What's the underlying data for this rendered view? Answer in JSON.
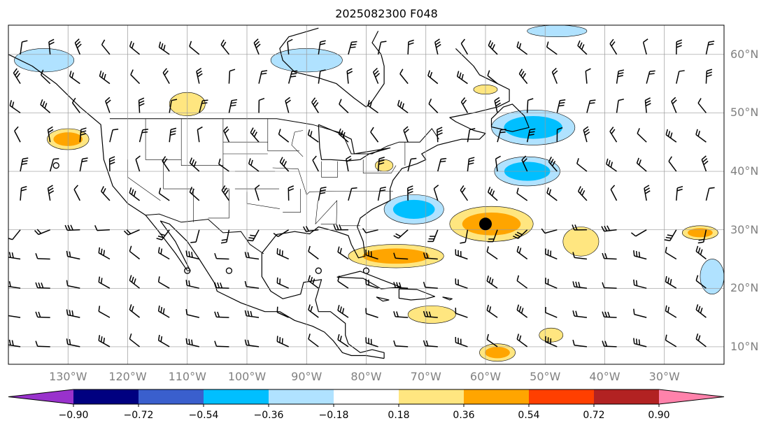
{
  "title": "2025082300 F048",
  "lat_labels": [
    {
      "text": "60°N",
      "lat": 60
    },
    {
      "text": "50°N",
      "lat": 50
    },
    {
      "text": "40°N",
      "lat": 40
    },
    {
      "text": "30°N",
      "lat": 30
    },
    {
      "text": "20°N",
      "lat": 20
    },
    {
      "text": "10°N",
      "lat": 10
    }
  ],
  "lon_labels": [
    {
      "text": "130°W",
      "lon": -130
    },
    {
      "text": "120°W",
      "lon": -120
    },
    {
      "text": "110°W",
      "lon": -110
    },
    {
      "text": "100°W",
      "lon": -100
    },
    {
      "text": "90°W",
      "lon": -90
    },
    {
      "text": "80°W",
      "lon": -80
    },
    {
      "text": "70°W",
      "lon": -70
    },
    {
      "text": "60°W",
      "lon": -60
    },
    {
      "text": "50°W",
      "lon": -50
    },
    {
      "text": "40°W",
      "lon": -40
    },
    {
      "text": "30°W",
      "lon": -30
    }
  ],
  "colorbar": {
    "ticks": [
      "−0.90",
      "−0.72",
      "−0.54",
      "−0.36",
      "−0.18",
      "0.18",
      "0.36",
      "0.54",
      "0.72",
      "0.90"
    ],
    "colors": [
      "#9932cc",
      "#000080",
      "#3a5fcd",
      "#00bfff",
      "#b0e2ff",
      "#ffffff",
      "#ffe680",
      "#ffa500",
      "#ff3f00",
      "#b22222",
      "#ff82ab"
    ]
  },
  "map": {
    "lon_range": [
      -140,
      -20
    ],
    "lat_range": [
      7,
      65
    ],
    "marker": {
      "lon": -60,
      "lat": 31
    }
  },
  "positive_areas": [
    {
      "cx": -59,
      "cy": 31,
      "rx": 7,
      "ry": 3,
      "level": 2
    },
    {
      "cx": -75,
      "cy": 25.5,
      "rx": 8,
      "ry": 2,
      "level": 2
    },
    {
      "cx": -130,
      "cy": 45.5,
      "rx": 3.5,
      "ry": 1.8,
      "level": 2
    },
    {
      "cx": -58,
      "cy": 9,
      "rx": 3,
      "ry": 1.5,
      "level": 2
    },
    {
      "cx": -69,
      "cy": 15.5,
      "rx": 4,
      "ry": 1.5,
      "level": 1
    },
    {
      "cx": -44,
      "cy": 28,
      "rx": 3,
      "ry": 2.5,
      "level": 1
    },
    {
      "cx": -110,
      "cy": 51.5,
      "rx": 3,
      "ry": 2,
      "level": 1
    },
    {
      "cx": -24,
      "cy": 29.5,
      "rx": 3,
      "ry": 1.2,
      "level": 2
    },
    {
      "cx": -49,
      "cy": 12,
      "rx": 2,
      "ry": 1.2,
      "level": 1
    },
    {
      "cx": -60,
      "cy": 54,
      "rx": 2,
      "ry": 0.8,
      "level": 1
    },
    {
      "cx": -77,
      "cy": 41,
      "rx": 1.5,
      "ry": 1,
      "level": 1
    }
  ],
  "negative_areas": [
    {
      "cx": -52,
      "cy": 47.5,
      "rx": 7,
      "ry": 3,
      "level": 2
    },
    {
      "cx": -72,
      "cy": 33.5,
      "rx": 5,
      "ry": 2.5,
      "level": 2
    },
    {
      "cx": -53,
      "cy": 40,
      "rx": 5.5,
      "ry": 2.5,
      "level": 2
    },
    {
      "cx": -90,
      "cy": 59,
      "rx": 6,
      "ry": 2,
      "level": 1
    },
    {
      "cx": -134,
      "cy": 59,
      "rx": 5,
      "ry": 2,
      "level": 1
    },
    {
      "cx": -22,
      "cy": 22,
      "rx": 2,
      "ry": 3,
      "level": 1
    },
    {
      "cx": -48,
      "cy": 64,
      "rx": 5,
      "ry": 1,
      "level": 1
    }
  ],
  "barbs": {
    "lon_start": -138,
    "lon_step": 5,
    "lat_start": 10,
    "lat_step": 5
  }
}
